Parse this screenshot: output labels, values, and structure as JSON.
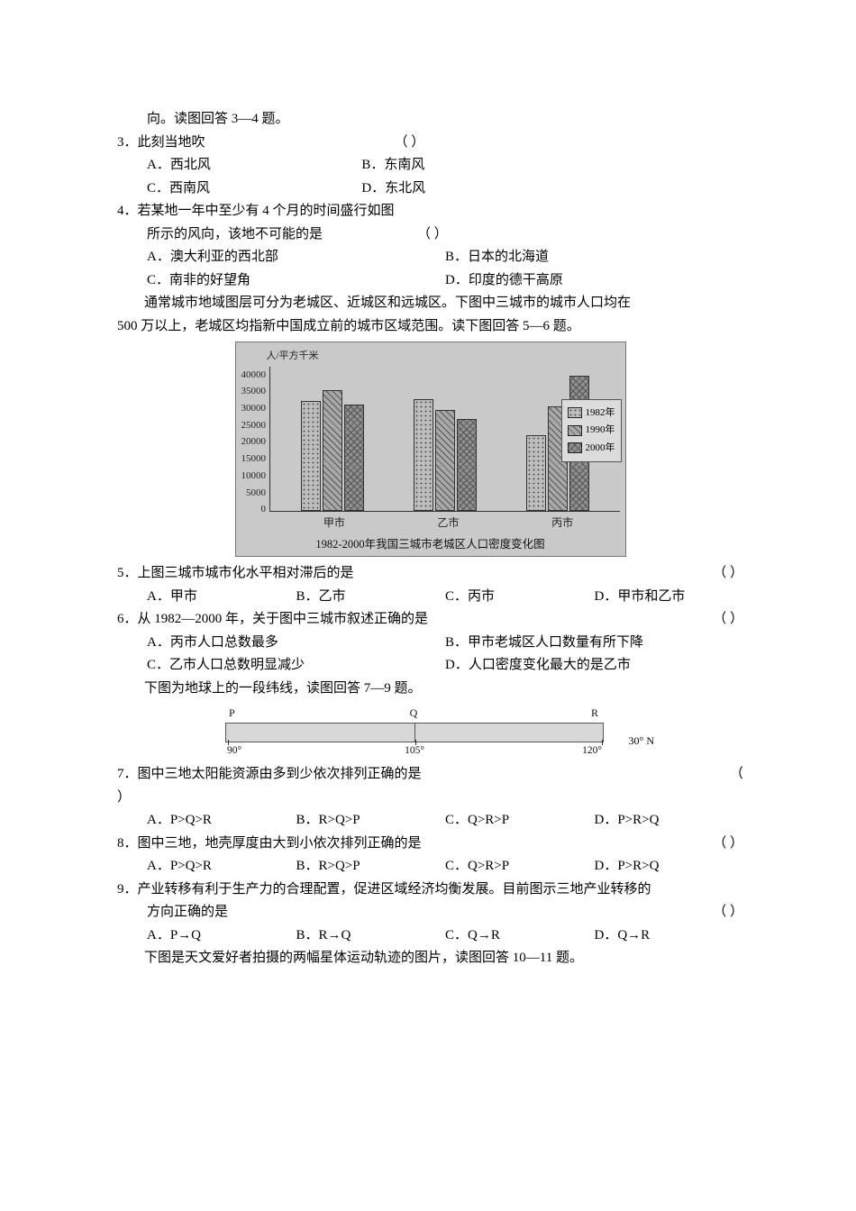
{
  "intro34": "向。读图回答 3—4 题。",
  "q3": {
    "stem": "3．此刻当地吹",
    "paren": "（   ）",
    "opts": {
      "A": "A．西北风",
      "B": "B．东南风",
      "C": "C．西南风",
      "D": "D．东北风"
    }
  },
  "q4": {
    "line1": "4．若某地一年中至少有 4 个月的时间盛行如图",
    "line2": "所示的风向，该地不可能的是",
    "paren": "（   ）",
    "opts": {
      "A": "A．澳大利亚的西北部",
      "B": "B．日本的北海道",
      "C": "C．南非的好望角",
      "D": "D．印度的德干高原"
    }
  },
  "intro56a": "　　通常城市地域图层可分为老城区、近城区和远城区。下图中三城市的城市人口均在",
  "intro56b": "500 万以上，老城区均指新中国成立前的城市区域范围。读下图回答 5—6 题。",
  "chart": {
    "yaxis_title": "人/平方千米",
    "ymax": 40000,
    "yticks": [
      "40000",
      "35000",
      "30000",
      "25000",
      "20000",
      "15000",
      "10000",
      "5000",
      "0"
    ],
    "categories": [
      "甲市",
      "乙市",
      "丙市"
    ],
    "series": [
      {
        "name": "1982年",
        "color": "#bdbdbd",
        "pattern": "dots",
        "values": [
          30500,
          31000,
          21000
        ]
      },
      {
        "name": "1990年",
        "color": "#a8a8a8",
        "pattern": "diag",
        "values": [
          33500,
          28000,
          29000
        ]
      },
      {
        "name": "2000年",
        "color": "#8f8f8f",
        "pattern": "cross",
        "values": [
          29500,
          25500,
          37500
        ]
      }
    ],
    "caption": "1982-2000年我国三城市老城区人口密度变化图",
    "background": "#c9c9c9",
    "axis_color": "#333333",
    "legend_bg": "#dcdcdc",
    "legend_prefix": [
      "▣",
      "▨",
      "▩"
    ]
  },
  "q5": {
    "stem": "5．上图三城市城市化水平相对滞后的是",
    "paren": "（   ）",
    "opts": {
      "A": "A．甲市",
      "B": "B．乙市",
      "C": "C．丙市",
      "D": "D．甲市和乙市"
    }
  },
  "q6": {
    "stem": "6．从 1982—2000 年，关于图中三城市叙述正确的是",
    "paren": "（   ）",
    "opts": {
      "A": "A．丙市人口总数最多",
      "B": "B．甲市老城区人口数量有所下降",
      "C": "C．乙市人口总数明显减少",
      "D": "D．人口密度变化最大的是乙市"
    }
  },
  "intro79": "　　下图为地球上的一段纬线，读图回答 7—9 题。",
  "latfig": {
    "top": [
      "P",
      "Q",
      "R"
    ],
    "side": "30° N",
    "bottom": [
      "90°",
      "105°",
      "120°"
    ],
    "bg": "#d8d8d8",
    "border": "#555555"
  },
  "q7": {
    "line1": "7．图中三地太阳能资源由多到少依次排列正确的是",
    "paren": "（",
    "paren2": "）",
    "opts": {
      "A": "A．P>Q>R",
      "B": "B．R>Q>P",
      "C": "C．Q>R>P",
      "D": "D．P>R>Q"
    }
  },
  "q8": {
    "stem": "8．图中三地，地壳厚度由大到小依次排列正确的是",
    "paren": "（   ）",
    "opts": {
      "A": "A．P>Q>R",
      "B": "B．R>Q>P",
      "C": "C．Q>R>P",
      "D": "D．P>R>Q"
    }
  },
  "q9": {
    "line1": "9．产业转移有利于生产力的合理配置，促进区域经济均衡发展。目前图示三地产业转移的",
    "line2": "方向正确的是",
    "paren": "（   ）",
    "opts": {
      "A": "A．P→Q",
      "B": "B．R→Q",
      "C": "C．Q→R",
      "D": "D．Q→R"
    }
  },
  "intro1011": "　　下图是天文爱好者拍摄的两幅星体运动轨迹的图片，读图回答 10—11 题。"
}
